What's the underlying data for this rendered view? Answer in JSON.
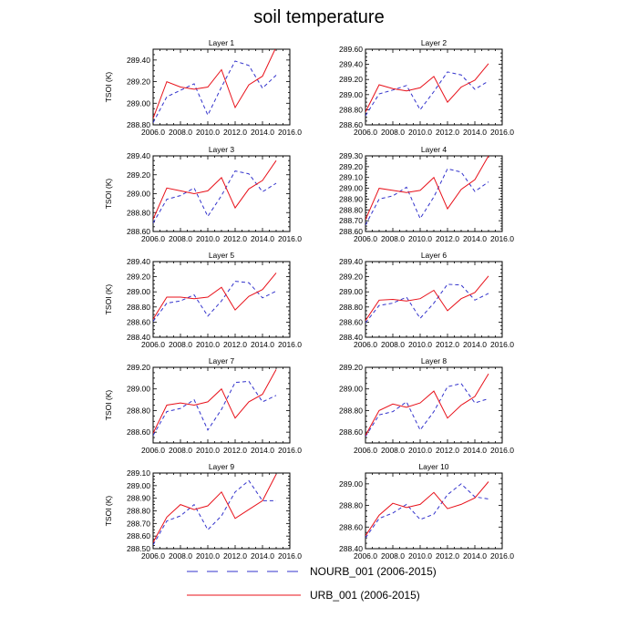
{
  "title": "soil temperature",
  "colors": {
    "nourb": "#3333cc",
    "urb": "#e8111a",
    "axis": "#000000"
  },
  "legend": [
    {
      "label": "NOURB_001 (2006-2015)",
      "style": "dashed",
      "color": "#3333cc"
    },
    {
      "label": "URB_001 (2006-2015)",
      "style": "solid",
      "color": "#e8111a"
    }
  ],
  "chart_data": [
    {
      "type": "line",
      "title": "Layer 1",
      "xlabel": "",
      "ylabel": "TSOI  (K)",
      "xlim": [
        2006.0,
        2016.0
      ],
      "ylim": [
        288.8,
        289.5
      ],
      "yticks": [
        "288.80",
        "289.00",
        "289.20",
        "289.40"
      ],
      "xticks": [
        "2006.0",
        "2008.0",
        "2010.0",
        "2012.0",
        "2014.0",
        "2016.0"
      ],
      "x": [
        2006,
        2007,
        2008,
        2009,
        2010,
        2011,
        2012,
        2013,
        2014,
        2015
      ],
      "series": [
        {
          "name": "NOURB_001 (2006-2015)",
          "values": [
            288.82,
            289.06,
            289.12,
            289.18,
            288.89,
            289.15,
            289.39,
            289.35,
            289.14,
            289.26
          ]
        },
        {
          "name": "URB_001 (2006-2015)",
          "values": [
            288.86,
            289.2,
            289.15,
            289.13,
            289.15,
            289.31,
            288.96,
            289.17,
            289.25,
            289.52
          ]
        }
      ]
    },
    {
      "type": "line",
      "title": "Layer 2",
      "xlabel": "",
      "ylabel": "",
      "xlim": [
        2006.0,
        2016.0
      ],
      "ylim": [
        288.6,
        289.6
      ],
      "yticks": [
        "288.60",
        "288.80",
        "289.00",
        "289.20",
        "289.40",
        "289.60"
      ],
      "xticks": [
        "2006.0",
        "2008.0",
        "2010.0",
        "2012.0",
        "2014.0",
        "2016.0"
      ],
      "x": [
        2006,
        2007,
        2008,
        2009,
        2010,
        2011,
        2012,
        2013,
        2014,
        2015
      ],
      "series": [
        {
          "name": "NOURB_001 (2006-2015)",
          "values": [
            288.72,
            289.01,
            289.06,
            289.12,
            288.8,
            289.04,
            289.3,
            289.26,
            289.07,
            289.18
          ]
        },
        {
          "name": "URB_001 (2006-2015)",
          "values": [
            288.77,
            289.13,
            289.08,
            289.05,
            289.09,
            289.24,
            288.9,
            289.1,
            289.19,
            289.41
          ]
        }
      ]
    },
    {
      "type": "line",
      "title": "Layer 3",
      "xlabel": "",
      "ylabel": "TSOI  (K)",
      "xlim": [
        2006.0,
        2016.0
      ],
      "ylim": [
        288.6,
        289.4
      ],
      "yticks": [
        "288.60",
        "288.80",
        "289.00",
        "289.20",
        "289.40"
      ],
      "xticks": [
        "2006.0",
        "2008.0",
        "2010.0",
        "2012.0",
        "2014.0",
        "2016.0"
      ],
      "x": [
        2006,
        2007,
        2008,
        2009,
        2010,
        2011,
        2012,
        2013,
        2014,
        2015
      ],
      "series": [
        {
          "name": "NOURB_001 (2006-2015)",
          "values": [
            288.69,
            288.94,
            288.98,
            289.06,
            288.76,
            288.98,
            289.24,
            289.21,
            289.02,
            289.11
          ]
        },
        {
          "name": "URB_001 (2006-2015)",
          "values": [
            288.73,
            289.06,
            289.03,
            289.0,
            289.03,
            289.17,
            288.85,
            289.05,
            289.14,
            289.35
          ]
        }
      ]
    },
    {
      "type": "line",
      "title": "Layer 4",
      "xlabel": "",
      "ylabel": "",
      "xlim": [
        2006.0,
        2016.0
      ],
      "ylim": [
        288.6,
        289.3
      ],
      "yticks": [
        "288.60",
        "288.70",
        "288.80",
        "288.90",
        "289.00",
        "289.10",
        "289.20",
        "289.30"
      ],
      "xticks": [
        "2006.0",
        "2008.0",
        "2010.0",
        "2012.0",
        "2014.0",
        "2016.0"
      ],
      "x": [
        2006,
        2007,
        2008,
        2009,
        2010,
        2011,
        2012,
        2013,
        2014,
        2015
      ],
      "series": [
        {
          "name": "NOURB_001 (2006-2015)",
          "values": [
            288.66,
            288.9,
            288.93,
            289.01,
            288.72,
            288.92,
            289.18,
            289.15,
            288.97,
            289.06
          ]
        },
        {
          "name": "URB_001 (2006-2015)",
          "values": [
            288.71,
            289.0,
            288.98,
            288.96,
            288.98,
            289.1,
            288.81,
            288.99,
            289.08,
            289.3
          ]
        }
      ]
    },
    {
      "type": "line",
      "title": "Layer 5",
      "xlabel": "",
      "ylabel": "TSOI  (K)",
      "xlim": [
        2006.0,
        2016.0
      ],
      "ylim": [
        288.4,
        289.4
      ],
      "yticks": [
        "288.40",
        "288.60",
        "288.80",
        "289.00",
        "289.20",
        "289.40"
      ],
      "xticks": [
        "2006.0",
        "2008.0",
        "2010.0",
        "2012.0",
        "2014.0",
        "2016.0"
      ],
      "x": [
        2006,
        2007,
        2008,
        2009,
        2010,
        2011,
        2012,
        2013,
        2014,
        2015
      ],
      "series": [
        {
          "name": "NOURB_001 (2006-2015)",
          "values": [
            288.61,
            288.85,
            288.88,
            288.96,
            288.68,
            288.88,
            289.14,
            289.12,
            288.92,
            289.01
          ]
        },
        {
          "name": "URB_001 (2006-2015)",
          "values": [
            288.64,
            288.93,
            288.93,
            288.91,
            288.93,
            289.06,
            288.76,
            288.94,
            289.03,
            289.25
          ]
        }
      ]
    },
    {
      "type": "line",
      "title": "Layer 6",
      "xlabel": "",
      "ylabel": "",
      "xlim": [
        2006.0,
        2016.0
      ],
      "ylim": [
        288.4,
        289.4
      ],
      "yticks": [
        "288.40",
        "288.60",
        "288.80",
        "289.00",
        "289.20",
        "289.40"
      ],
      "xticks": [
        "2006.0",
        "2008.0",
        "2010.0",
        "2012.0",
        "2014.0",
        "2016.0"
      ],
      "x": [
        2006,
        2007,
        2008,
        2009,
        2010,
        2011,
        2012,
        2013,
        2014,
        2015
      ],
      "series": [
        {
          "name": "NOURB_001 (2006-2015)",
          "values": [
            288.59,
            288.82,
            288.85,
            288.93,
            288.65,
            288.85,
            289.1,
            289.09,
            288.89,
            288.98
          ]
        },
        {
          "name": "URB_001 (2006-2015)",
          "values": [
            288.62,
            288.89,
            288.9,
            288.88,
            288.91,
            289.02,
            288.75,
            288.91,
            288.99,
            289.21
          ]
        }
      ]
    },
    {
      "type": "line",
      "title": "Layer 7",
      "xlabel": "",
      "ylabel": "TSOI  (K)",
      "xlim": [
        2006.0,
        2016.0
      ],
      "ylim": [
        288.5,
        289.2
      ],
      "yticks": [
        "288.60",
        "288.80",
        "289.00",
        "289.20"
      ],
      "xticks": [
        "2006.0",
        "2008.0",
        "2010.0",
        "2012.0",
        "2014.0",
        "2016.0"
      ],
      "x": [
        2006,
        2007,
        2008,
        2009,
        2010,
        2011,
        2012,
        2013,
        2014,
        2015
      ],
      "series": [
        {
          "name": "NOURB_001 (2006-2015)",
          "values": [
            288.57,
            288.79,
            288.82,
            288.9,
            288.62,
            288.81,
            289.06,
            289.07,
            288.88,
            288.94
          ]
        },
        {
          "name": "URB_001 (2006-2015)",
          "values": [
            288.59,
            288.85,
            288.87,
            288.85,
            288.88,
            289.0,
            288.73,
            288.88,
            288.95,
            289.18
          ]
        }
      ]
    },
    {
      "type": "line",
      "title": "Layer 8",
      "xlabel": "",
      "ylabel": "",
      "xlim": [
        2006.0,
        2016.0
      ],
      "ylim": [
        288.5,
        289.2
      ],
      "yticks": [
        "288.60",
        "288.80",
        "289.00",
        "289.20"
      ],
      "xticks": [
        "2006.0",
        "2008.0",
        "2010.0",
        "2012.0",
        "2014.0",
        "2016.0"
      ],
      "x": [
        2006,
        2007,
        2008,
        2009,
        2010,
        2011,
        2012,
        2013,
        2014,
        2015
      ],
      "series": [
        {
          "name": "NOURB_001 (2006-2015)",
          "values": [
            288.56,
            288.76,
            288.79,
            288.88,
            288.62,
            288.79,
            289.02,
            289.05,
            288.87,
            288.91
          ]
        },
        {
          "name": "URB_001 (2006-2015)",
          "values": [
            288.57,
            288.8,
            288.86,
            288.83,
            288.87,
            288.98,
            288.73,
            288.85,
            288.93,
            289.14
          ]
        }
      ]
    },
    {
      "type": "line",
      "title": "Layer 9",
      "xlabel": "",
      "ylabel": "TSOI  (K)",
      "xlim": [
        2006.0,
        2016.0
      ],
      "ylim": [
        288.5,
        289.1
      ],
      "yticks": [
        "288.50",
        "288.60",
        "288.70",
        "288.80",
        "288.90",
        "289.00",
        "289.10"
      ],
      "xticks": [
        "2006.0",
        "2008.0",
        "2010.0",
        "2012.0",
        "2014.0",
        "2016.0"
      ],
      "x": [
        2006,
        2007,
        2008,
        2009,
        2010,
        2011,
        2012,
        2013,
        2014,
        2015
      ],
      "series": [
        {
          "name": "NOURB_001 (2006-2015)",
          "values": [
            288.53,
            288.72,
            288.76,
            288.85,
            288.65,
            288.76,
            288.95,
            289.04,
            288.88,
            288.88
          ]
        },
        {
          "name": "URB_001 (2006-2015)",
          "values": [
            288.55,
            288.75,
            288.85,
            288.81,
            288.84,
            288.95,
            288.74,
            288.81,
            288.88,
            289.09
          ]
        }
      ]
    },
    {
      "type": "line",
      "title": "Layer 10",
      "xlabel": "",
      "ylabel": "",
      "xlim": [
        2006.0,
        2016.0
      ],
      "ylim": [
        288.4,
        289.1
      ],
      "yticks": [
        "288.40",
        "288.60",
        "288.80",
        "289.00"
      ],
      "xticks": [
        "2006.0",
        "2008.0",
        "2010.0",
        "2012.0",
        "2014.0",
        "2016.0"
      ],
      "x": [
        2006,
        2007,
        2008,
        2009,
        2010,
        2011,
        2012,
        2013,
        2014,
        2015
      ],
      "series": [
        {
          "name": "NOURB_001 (2006-2015)",
          "values": [
            288.5,
            288.68,
            288.73,
            288.81,
            288.67,
            288.72,
            288.9,
            289.0,
            288.88,
            288.86
          ]
        },
        {
          "name": "URB_001 (2006-2015)",
          "values": [
            288.52,
            288.71,
            288.82,
            288.78,
            288.81,
            288.92,
            288.77,
            288.81,
            288.87,
            289.02
          ]
        }
      ]
    }
  ]
}
